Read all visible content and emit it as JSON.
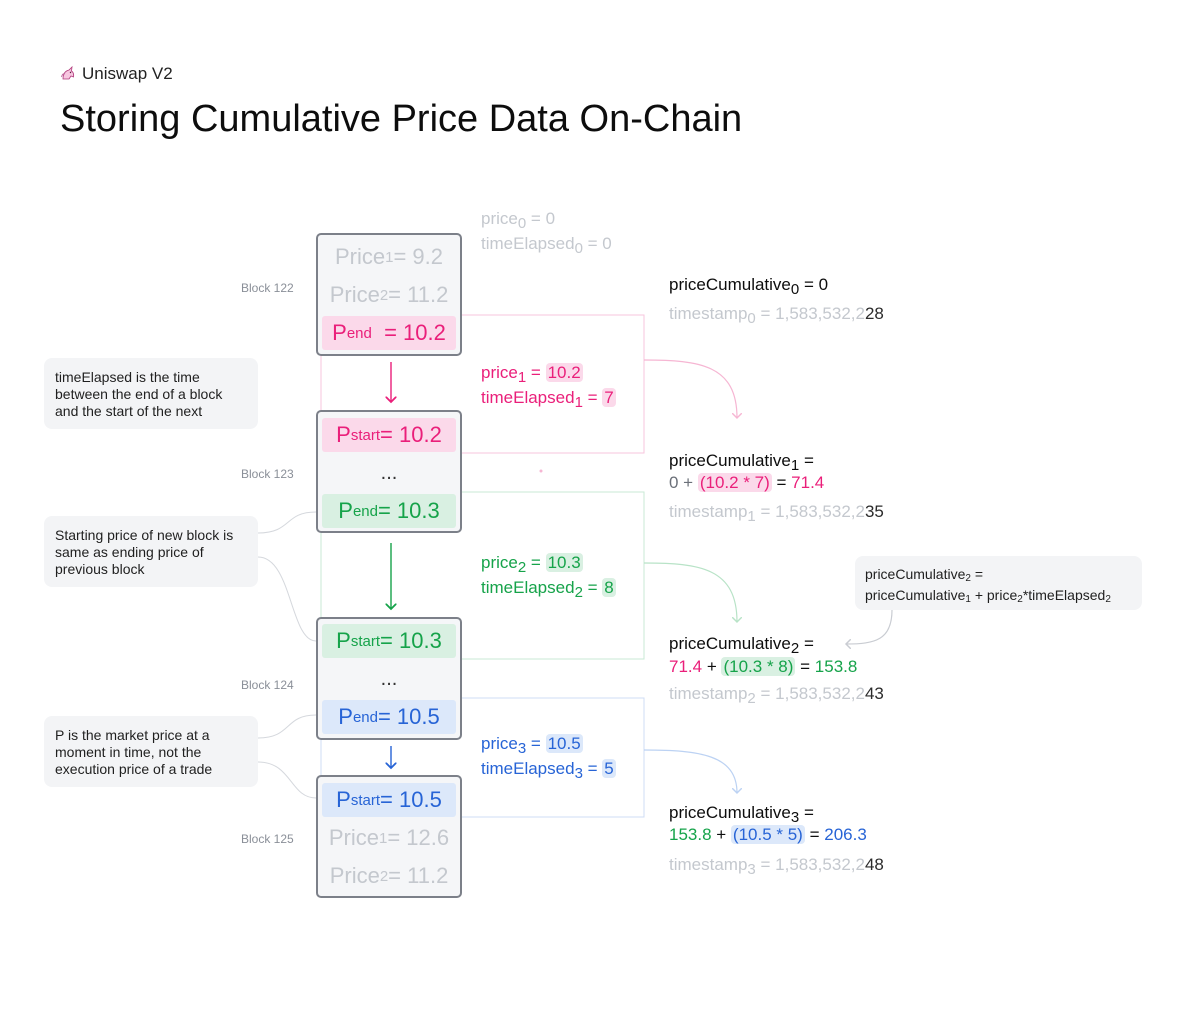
{
  "header": {
    "brand": "Uniswap V2",
    "brand_icon": "unicorn-icon",
    "title": "Storing Cumulative Price Data On-Chain"
  },
  "colors": {
    "pink": "#ea1f7a",
    "green": "#16a34a",
    "blue": "#2764d6",
    "gray": "#c4c8ce"
  },
  "blocks": [
    {
      "label": "Block 122",
      "rows": [
        "Price",
        "1",
        " = 9.2",
        "Price",
        "2",
        " = 11.2",
        "P",
        "end",
        "  = 10.2"
      ]
    },
    {
      "label": "Block 123"
    },
    {
      "label": "Block 124"
    },
    {
      "label": "Block 125"
    }
  ],
  "b122": {
    "r1": "Price",
    "r1s": "1",
    "r1v": " = 9.2",
    "r2": "Price",
    "r2s": "2",
    "r2v": " = 11.2",
    "r3": "P",
    "r3s": "end",
    "r3v": "  = 10.2"
  },
  "b123": {
    "r1": "P",
    "r1s": "start",
    "r1v": " = 10.2",
    "dots": "...",
    "r3": "P",
    "r3s": "end",
    "r3v": " = 10.3"
  },
  "b124": {
    "r1": "P",
    "r1s": "start",
    "r1v": " = 10.3",
    "dots": "...",
    "r3": "P",
    "r3s": "end",
    "r3v": " = 10.5"
  },
  "b125": {
    "r1": "P",
    "r1s": "start",
    "r1v": " = 10.5",
    "r2": "Price",
    "r2s": "1",
    "r2v": " = 12.6",
    "r3": "Price",
    "r3s": "2",
    "r3v": " = 11.2"
  },
  "notes": {
    "n1": "timeElapsed is the time between the end of a block and the start of the next",
    "n2": "Starting price of new block is same as ending price of previous block",
    "n3": "P is the market price at a moment in time, not the execution price of a trade"
  },
  "mid": {
    "p0": "price",
    "p0s": "0",
    "p0v": " = 0",
    "t0": "timeElapsed",
    "t0s": "0",
    "t0v": " = 0",
    "p1": "price",
    "p1s": "1",
    "p1eq": " = ",
    "p1v": "10.2",
    "t1": "timeElapsed",
    "t1s": "1",
    "t1eq": " = ",
    "t1v": "7",
    "p2": "price",
    "p2s": "2",
    "p2eq": " = ",
    "p2v": "10.3",
    "t2": "timeElapsed",
    "t2s": "2",
    "t2eq": " = ",
    "t2v": "8",
    "p3": "price",
    "p3s": "3",
    "p3eq": " = ",
    "p3v": "10.5",
    "t3": "timeElapsed",
    "t3s": "3",
    "t3eq": " = ",
    "t3v": "5"
  },
  "cumulative": {
    "c0": "priceCumulative",
    "c0s": "0",
    "c0v": " = 0",
    "ts0": "timestamp",
    "ts0s": "0",
    "ts0v": " = 1,583,532,2",
    "ts0e": "28",
    "c1": "priceCumulative",
    "c1s": "1",
    "c1eq": " =",
    "c1a": "0 + ",
    "c1b": "(10.2 * 7)",
    "c1c": " = ",
    "c1d": "71.4",
    "ts1": "timestamp",
    "ts1s": "1",
    "ts1v": " = 1,583,532,2",
    "ts1e": "35",
    "c2": "priceCumulative",
    "c2s": "2",
    "c2eq": " =",
    "c2a": "71.4",
    "c2p": " + ",
    "c2b": "(10.3 * 8)",
    "c2c": " = ",
    "c2d": "153.8",
    "ts2": "timestamp",
    "ts2s": "2",
    "ts2v": " = 1,583,532,2",
    "ts2e": "43",
    "c3": "priceCumulative",
    "c3s": "3",
    "c3eq": " =",
    "c3a": "153.8",
    "c3p": " + ",
    "c3b": "(10.5 * 5)",
    "c3c": " = ",
    "c3d": "206.3",
    "ts3": "timestamp",
    "ts3s": "3",
    "ts3v": " = 1,583,532,2",
    "ts3e": "48"
  },
  "formula": {
    "l1": "priceCumulative",
    "l1s": "2",
    "l1e": " =",
    "l2a": "priceCumulative",
    "l2as": "1",
    "l2b": " + price",
    "l2bs": "2",
    "l2c": "*timeElapsed",
    "l2cs": "2"
  }
}
